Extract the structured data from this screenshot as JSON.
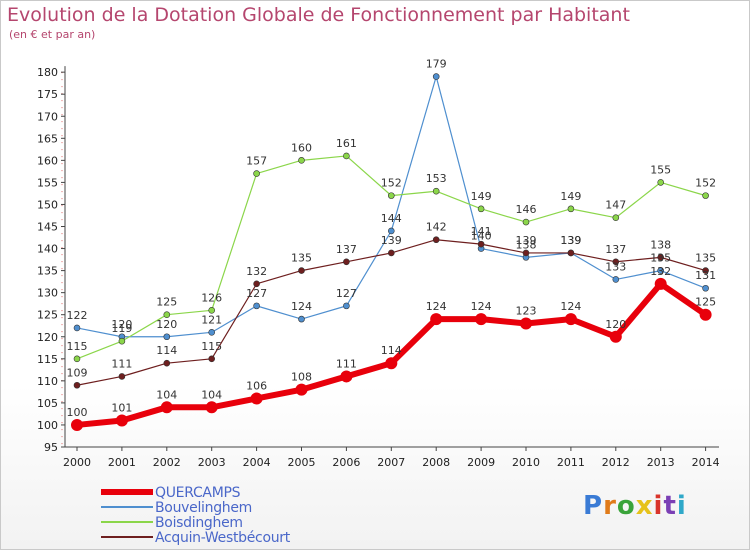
{
  "title": "Evolution de la Dotation Globale de Fonctionnement par Habitant",
  "subtitle": "(en € et par an)",
  "logo": {
    "text": "Proxiti",
    "colors": [
      "#3a7bd5",
      "#e07b1a",
      "#3aa43a",
      "#e6c21a",
      "#d9342b",
      "#7b3fb5",
      "#2fa8c9"
    ]
  },
  "chart_data": {
    "type": "line",
    "title": "Evolution de la Dotation Globale de Fonctionnement par Habitant",
    "subtitle": "(en € et par an)",
    "x": [
      "2000",
      "2001",
      "2002",
      "2003",
      "2004",
      "2005",
      "2006",
      "2007",
      "2008",
      "2009",
      "2010",
      "2011",
      "2012",
      "2013",
      "2014"
    ],
    "y_ticks": [
      "95",
      "100",
      "105",
      "110",
      "115",
      "120",
      "125",
      "130",
      "135",
      "140",
      "145",
      "150",
      "155",
      "160",
      "165",
      "170",
      "175",
      "180"
    ],
    "ylim": [
      95,
      180
    ],
    "grid": false,
    "legend_position": "bottom-left",
    "series": [
      {
        "name": "Bouvelinghem",
        "color": "#4f8fcf",
        "values": [
          122,
          120,
          120,
          121,
          127,
          124,
          127,
          144,
          179,
          140,
          138,
          139,
          133,
          135,
          131
        ]
      },
      {
        "name": "Boisdinghem",
        "color": "#8bd64a",
        "values": [
          115,
          119,
          125,
          126,
          157,
          160,
          161,
          152,
          153,
          149,
          146,
          149,
          147,
          155,
          152
        ]
      },
      {
        "name": "Acquin-Westbécourt",
        "color": "#6e1f1f",
        "values": [
          109,
          111,
          114,
          115,
          132,
          135,
          137,
          139,
          142,
          141,
          139,
          139,
          137,
          138,
          135
        ]
      },
      {
        "name": "QUERCAMPS",
        "color": "#e8000b",
        "values": [
          100,
          101,
          104,
          104,
          106,
          108,
          111,
          114,
          124,
          124,
          123,
          124,
          120,
          132,
          125
        ]
      }
    ],
    "labels": {
      "Bouvelinghem": [
        "122",
        "120",
        "120",
        "121",
        "127",
        "124",
        "127",
        "144",
        "179",
        "140",
        "138",
        "139",
        "133",
        "135",
        "131"
      ],
      "Boisdinghem": [
        "115",
        "119",
        "125",
        "126",
        "157",
        "160",
        "161",
        "152",
        "153",
        "149",
        "146",
        "149",
        "147",
        "155",
        "152"
      ],
      "Acquin-Westbécourt": [
        "109",
        "111",
        "114",
        "115",
        "132",
        "135",
        "137",
        "139",
        "142",
        "141",
        "139",
        "139",
        "137",
        "138",
        "135"
      ],
      "QUERCAMPS": [
        "100",
        "101",
        "104",
        "104",
        "106",
        "108",
        "111",
        "114",
        "124",
        "124",
        "123",
        "124",
        "120",
        "132",
        "125"
      ]
    },
    "legend": [
      "QUERCAMPS",
      "Bouvelinghem",
      "Boisdinghem",
      "Acquin-Westbécourt"
    ]
  }
}
